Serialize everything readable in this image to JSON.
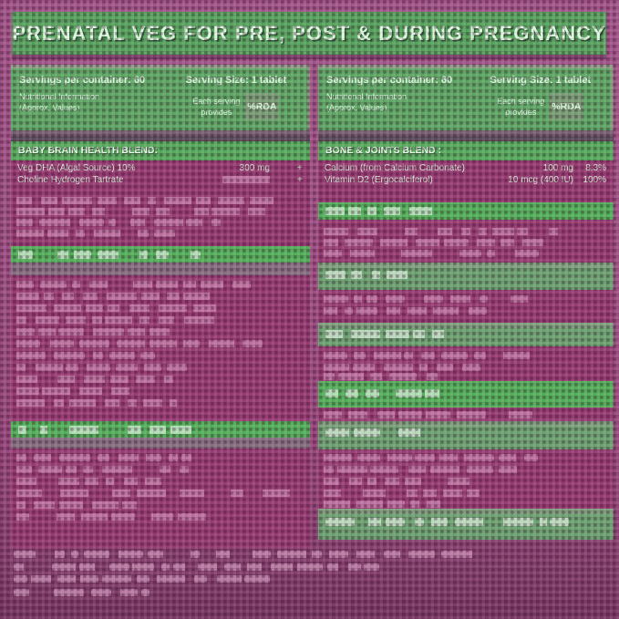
{
  "title": "PRENATAL VEG FOR PRE, POST & DURING PREGNANCY",
  "panel_left": {
    "servings_label": "Servings per container: 60",
    "serving_size_label": "Serving Size:  1 tablet",
    "nutritional_info_line1": "Nutritional Information",
    "nutritional_info_line2": "(Approx. Values)",
    "each_serving_line1": "Each serving",
    "each_serving_line2": "provides",
    "rda_label": "%RDA",
    "section_title": "BABY BRAIN HEALTH BLEND:",
    "rows": [
      {
        "name": "Veg DHA (Algal Source) 10%",
        "amount": "300 mg",
        "rda": "+"
      },
      {
        "name": "Choline Hydrogen Tartrate",
        "amount": "",
        "rda": "+"
      }
    ]
  },
  "panel_right": {
    "servings_label": "Servings per container: 60",
    "serving_size_label": "Serving Size:  1 tablet",
    "nutritional_info_line1": "Nutritional Information",
    "nutritional_info_line2": "(Approx. Values)",
    "each_serving_line1": "Each serving",
    "each_serving_line2": "provides",
    "rda_label": "%RDA",
    "section_title": "BONE & JOINTS BLEND :",
    "rows": [
      {
        "name": "Calcium (from Calcium Carbonate)",
        "amount": "100 mg",
        "rda": "8.3%"
      },
      {
        "name": "Vitamin D2 (Ergocalciferol)",
        "amount": "10 mcg (400 IU)",
        "rda": "100%"
      }
    ]
  },
  "colors": {
    "background_purple": "#9d5183",
    "header_green": "#58a45f",
    "panel_green": "#5fa765",
    "band_green_bright": "#55b05c",
    "band_green_muted": "#6da372",
    "light_green_text": "#dcf6de",
    "row_text": "#d3ebd5",
    "ghost_pink": "#e0a4c9"
  }
}
